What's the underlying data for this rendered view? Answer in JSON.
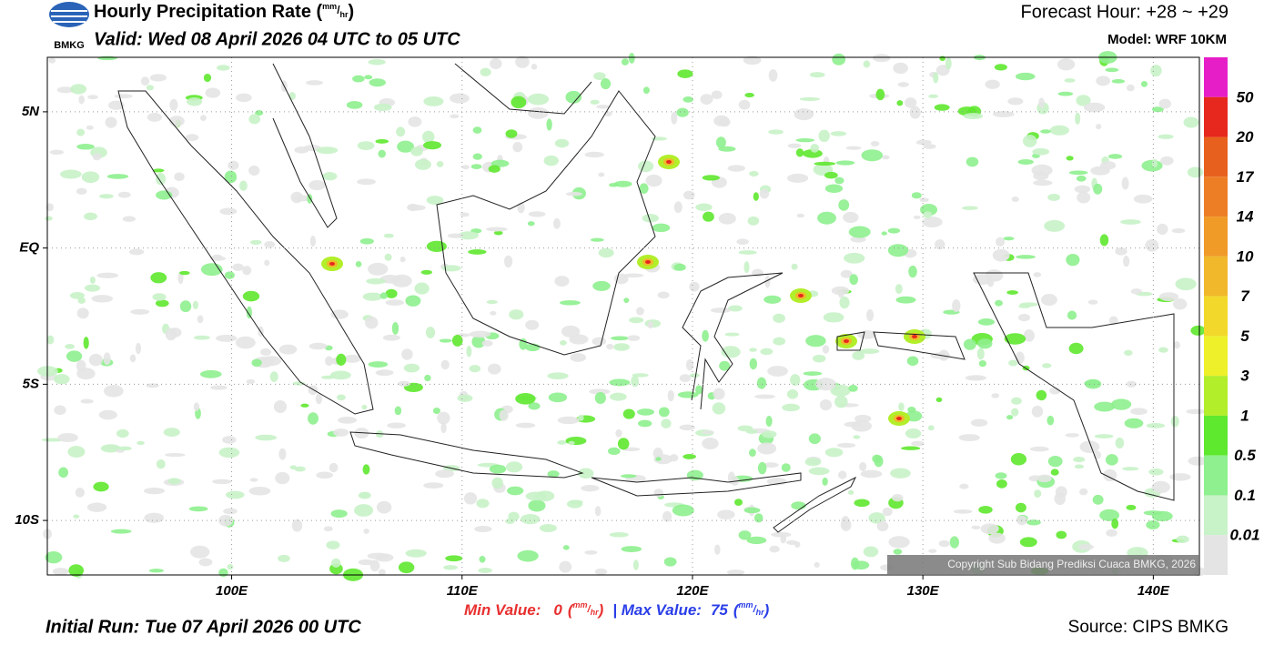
{
  "header": {
    "logo": "BMKG",
    "title": "Hourly Precipitation Rate",
    "unit_open": "(",
    "unit_num": "mm",
    "unit_sep": "/",
    "unit_den": "hr",
    "unit_close": ")",
    "valid": "Valid: Wed 08 April 2026 04 UTC to 05 UTC",
    "forecast_hour": "Forecast Hour: +28 ~ +29",
    "model": "Model: WRF 10KM"
  },
  "map": {
    "xlim": [
      92,
      142
    ],
    "ylim": [
      -12,
      7
    ],
    "xticks": [
      {
        "value": 100,
        "label": "100E"
      },
      {
        "value": 110,
        "label": "110E"
      },
      {
        "value": 120,
        "label": "120E"
      },
      {
        "value": 130,
        "label": "130E"
      },
      {
        "value": 140,
        "label": "140E"
      }
    ],
    "yticks": [
      {
        "value": 5,
        "label": "5N"
      },
      {
        "value": 0,
        "label": "EQ"
      },
      {
        "value": -5,
        "label": "5S"
      },
      {
        "value": -10,
        "label": "10S"
      }
    ],
    "grid": true,
    "copyright": "Copyright Sub Bidang Prediksi Cuaca BMKG, 2026"
  },
  "colorbar": {
    "labels": [
      50,
      20,
      17,
      14,
      10,
      7,
      5,
      3,
      1,
      0.5,
      0.1,
      0.01
    ],
    "colors": [
      "#e61ec8",
      "#e6281e",
      "#e8601e",
      "#ee7e26",
      "#f09a28",
      "#f0b82a",
      "#f2d82a",
      "#eef02a",
      "#b2ee2a",
      "#5ee82e",
      "#8ef08e",
      "#c8f2c8",
      "#e4e4e4"
    ]
  },
  "footer": {
    "min_label": "Min Value:",
    "min_value": 0,
    "max_label": "| Max Value:",
    "max_value": 75,
    "initial_run": "Initial Run: Tue 07 April 2026 00 UTC",
    "source": "Source: CIPS BMKG"
  }
}
